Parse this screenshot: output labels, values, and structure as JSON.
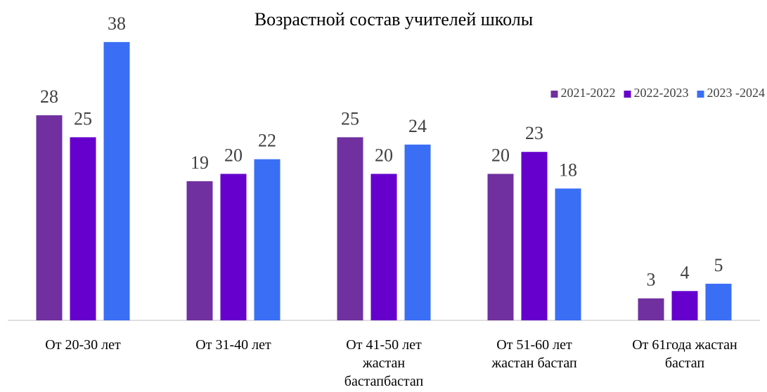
{
  "chart_data": {
    "type": "bar",
    "title": "Возрастной состав учителей школы",
    "categories": [
      "От 20-30 лет",
      "От 31-40 лет",
      "От 41-50 лет жастан бастапбастап",
      "От 51-60 лет жастан бастап",
      "От 61года  жастан бастап"
    ],
    "series": [
      {
        "name": "2021-2022",
        "color": "#7030a0",
        "values": [
          28,
          19,
          25,
          20,
          3
        ]
      },
      {
        "name": "2022-2023",
        "color": "#6600cc",
        "values": [
          25,
          20,
          20,
          23,
          4
        ]
      },
      {
        "name": "2023 -2024",
        "color": "#3a6ef5",
        "values": [
          38,
          22,
          24,
          18,
          5
        ]
      }
    ],
    "ylim": [
      0,
      40
    ],
    "legend": "top-right"
  }
}
